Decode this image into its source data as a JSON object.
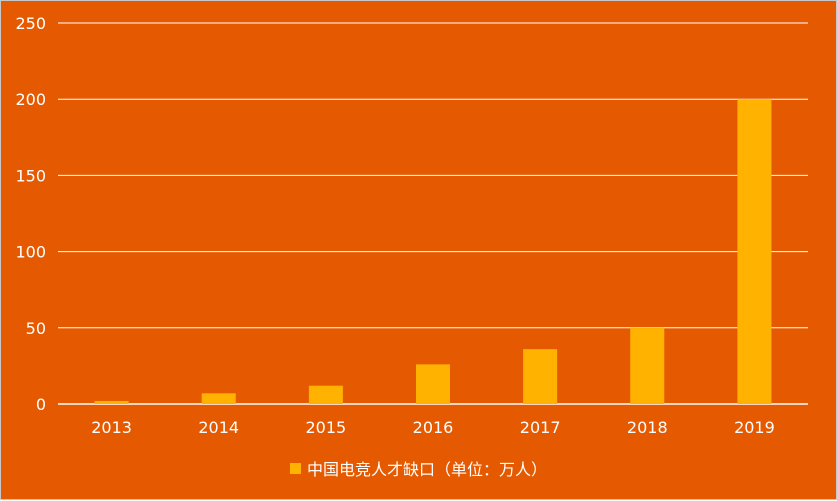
{
  "colors": {
    "background": "#e55a00",
    "bar": "#ffb300",
    "grid": "#ffffff",
    "text": "#ffffff"
  },
  "chart_data": {
    "type": "bar",
    "categories": [
      "2013",
      "2014",
      "2015",
      "2016",
      "2017",
      "2018",
      "2019"
    ],
    "series": [
      {
        "name": "中国电竞人才缺口（单位：万人）",
        "values": [
          2,
          7,
          12,
          26,
          36,
          50,
          200
        ]
      }
    ],
    "ylim": [
      0,
      250
    ],
    "yticks": [
      0,
      50,
      100,
      150,
      200,
      250
    ],
    "grid": true,
    "legend": "bottom-center",
    "title": "",
    "xlabel": "",
    "ylabel": ""
  }
}
